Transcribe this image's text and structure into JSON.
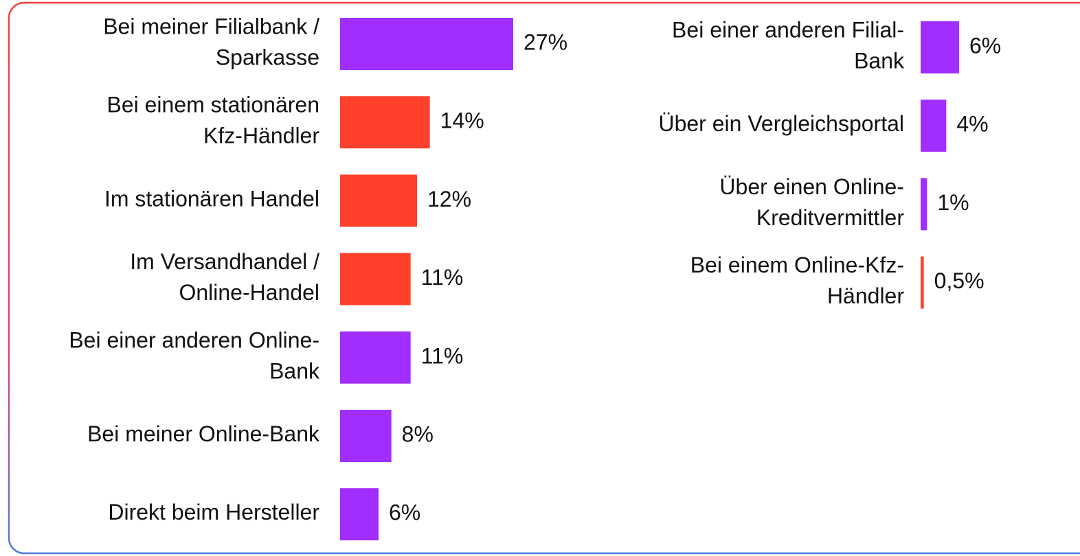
{
  "chart_data": [
    {
      "type": "bar",
      "orientation": "horizontal",
      "categories": [
        "Bei meiner Filialbank /\nSparkasse",
        "Bei einem stationären\nKfz-Händler",
        "Im stationären Handel",
        "Im Versandhandel /\nOnline-Handel",
        "Bei einer anderen Online-\nBank",
        "Bei meiner Online-Bank",
        "Direkt beim Hersteller"
      ],
      "values": [
        27,
        14,
        12,
        11,
        11,
        8,
        6
      ],
      "value_labels": [
        "27%",
        "14%",
        "12%",
        "11%",
        "11%",
        "8%",
        "6%"
      ],
      "colors": [
        "#a12eff",
        "#ff412c",
        "#ff412c",
        "#ff412c",
        "#a12eff",
        "#a12eff",
        "#a12eff"
      ],
      "xlim": [
        0,
        30
      ]
    },
    {
      "type": "bar",
      "orientation": "horizontal",
      "categories": [
        "Bei einer anderen Filial-\nBank",
        "Über ein Vergleichsportal",
        "Über einen Online-\nKreditvermittler",
        "Bei einem Online-Kfz-\nHändler"
      ],
      "values": [
        6,
        4,
        1,
        0.5
      ],
      "value_labels": [
        "6%",
        "4%",
        "1%",
        "0,5%"
      ],
      "colors": [
        "#a12eff",
        "#a12eff",
        "#a12eff",
        "#ff412c"
      ],
      "xlim": [
        0,
        30
      ]
    }
  ]
}
